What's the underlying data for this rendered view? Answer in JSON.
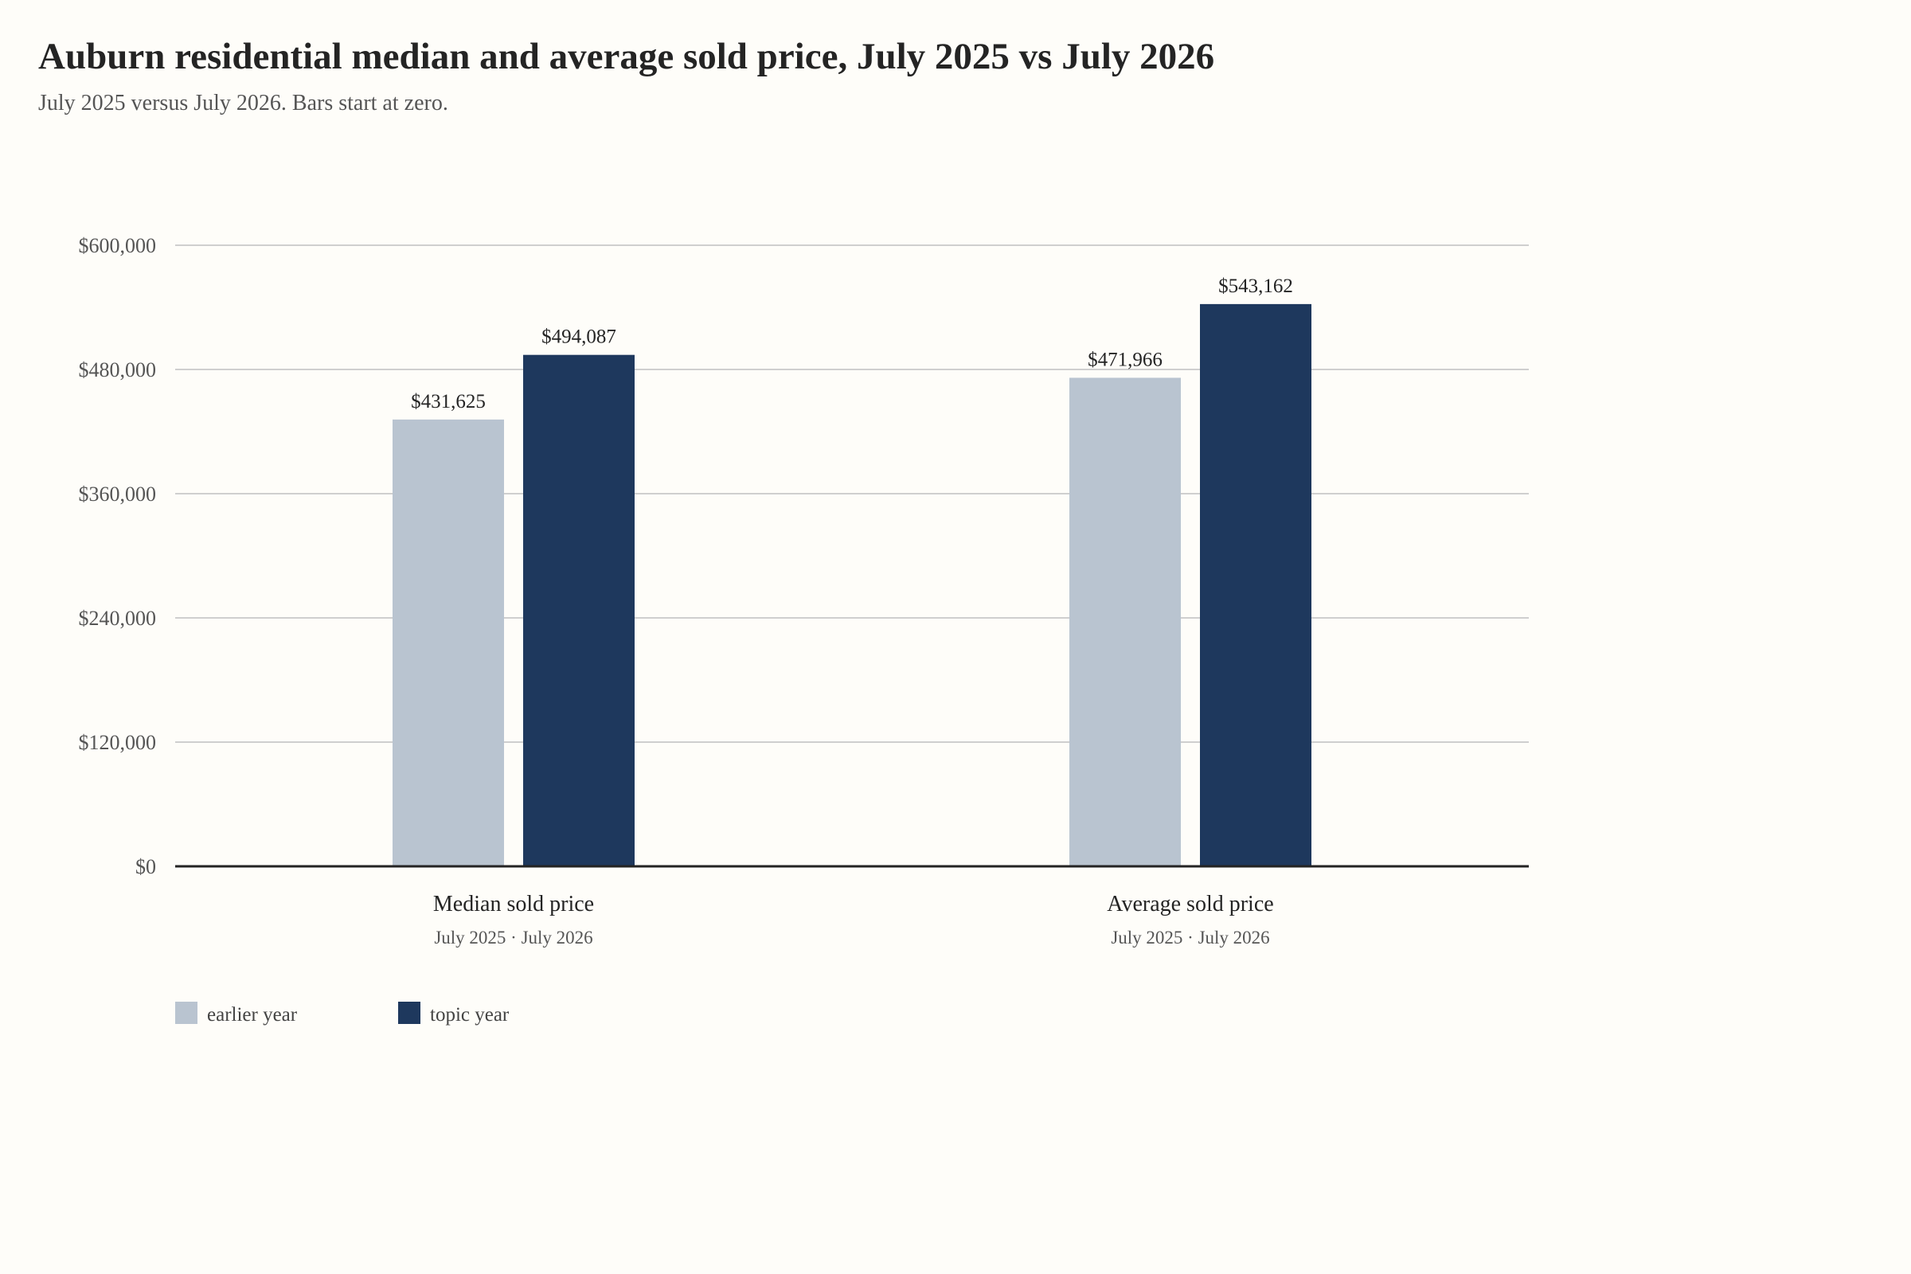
{
  "chart_data": {
    "type": "bar",
    "title": "Auburn residential median and average sold price, July 2025 vs July 2026",
    "subtitle": "July 2025 versus July 2026. Bars start at zero.",
    "xlabel": "",
    "ylabel": "",
    "ylim": [
      0,
      600000
    ],
    "yticks": [
      {
        "value": 0,
        "label": "$0"
      },
      {
        "value": 120000,
        "label": "$120,000"
      },
      {
        "value": 240000,
        "label": "$240,000"
      },
      {
        "value": 360000,
        "label": "$360,000"
      },
      {
        "value": 480000,
        "label": "$480,000"
      },
      {
        "value": 600000,
        "label": "$600,000"
      }
    ],
    "grid": true,
    "legend_position": "bottom-left",
    "categories": [
      "Median sold price",
      "Average sold price"
    ],
    "category_sublabels": [
      "July 2025 · July 2026",
      "July 2025 · July 2026"
    ],
    "series": [
      {
        "name": "earlier year",
        "color": "#b9c4d0",
        "values": [
          431625,
          471966
        ],
        "labels": [
          "$431,625",
          "$471,966"
        ]
      },
      {
        "name": "topic year",
        "color": "#1e385d",
        "values": [
          494087,
          543162
        ],
        "labels": [
          "$494,087",
          "$543,162"
        ]
      }
    ]
  }
}
